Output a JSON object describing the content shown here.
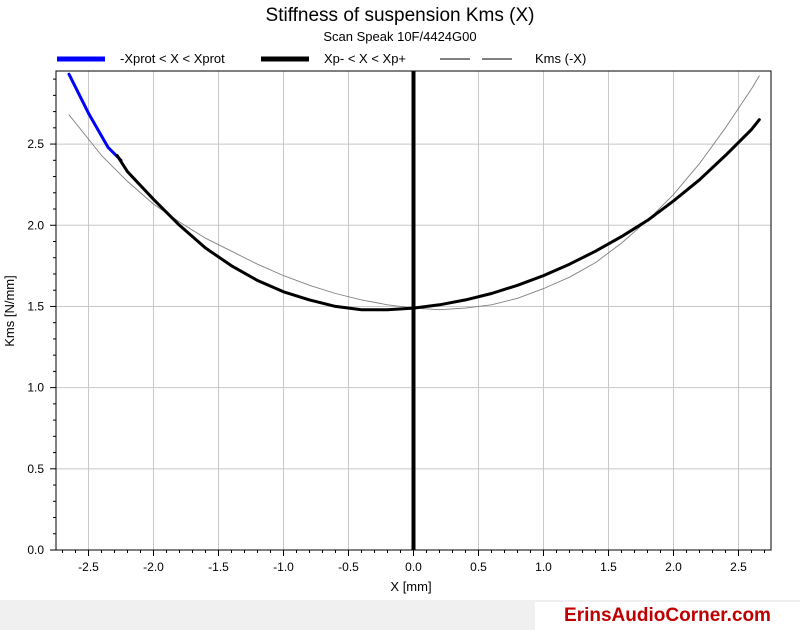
{
  "chart_data": {
    "type": "line",
    "title": "Stiffness of suspension Kms (X)",
    "subtitle": "Scan Speak 10F/4424G00",
    "xlabel": "X [mm]",
    "ylabel": "Kms [N/mm]",
    "xlim": [
      -2.75,
      2.75
    ],
    "ylim": [
      0,
      2.95
    ],
    "xticks": [
      -2.5,
      -2.0,
      -1.5,
      -1.0,
      -0.5,
      0.0,
      0.5,
      1.0,
      1.5,
      2.0,
      2.5
    ],
    "xtick_labels": [
      "-2.5",
      "-2.0",
      "-1.5",
      "-1.0",
      "-0.5",
      "0.0",
      "0.5",
      "1.0",
      "1.5",
      "2.0",
      "2.5"
    ],
    "yticks": [
      0.0,
      0.5,
      1.0,
      1.5,
      2.0,
      2.5
    ],
    "ytick_labels": [
      "0.0",
      "0.5",
      "1.0",
      "1.5",
      "2.0",
      "2.5"
    ],
    "grid": true,
    "legend_position": "top",
    "vertical_line_x": 0.0,
    "series": [
      {
        "name": "-Xprot < X < Xprot",
        "color": "#0000ff",
        "x": [
          -2.65,
          -2.5,
          -2.35,
          -2.25
        ],
        "y": [
          2.93,
          2.69,
          2.48,
          2.4
        ]
      },
      {
        "name": "Xp- < X < Xp+",
        "color": "#000000",
        "x": [
          -2.28,
          -2.2,
          -2.0,
          -1.8,
          -1.6,
          -1.4,
          -1.2,
          -1.0,
          -0.8,
          -0.6,
          -0.4,
          -0.2,
          0.0,
          0.2,
          0.4,
          0.6,
          0.8,
          1.0,
          1.2,
          1.4,
          1.6,
          1.8,
          2.0,
          2.2,
          2.4,
          2.6,
          2.66
        ],
        "y": [
          2.43,
          2.33,
          2.16,
          2.0,
          1.86,
          1.75,
          1.66,
          1.59,
          1.54,
          1.5,
          1.48,
          1.48,
          1.49,
          1.51,
          1.54,
          1.58,
          1.63,
          1.69,
          1.76,
          1.84,
          1.93,
          2.03,
          2.15,
          2.28,
          2.43,
          2.59,
          2.65
        ]
      },
      {
        "name": "Kms (-X)",
        "color": "#808080",
        "x": [
          -2.65,
          -2.4,
          -2.2,
          -2.0,
          -1.8,
          -1.6,
          -1.4,
          -1.2,
          -1.0,
          -0.8,
          -0.6,
          -0.4,
          -0.2,
          0.0,
          0.2,
          0.4,
          0.6,
          0.8,
          1.0,
          1.2,
          1.4,
          1.6,
          1.8,
          2.0,
          2.2,
          2.4,
          2.6,
          2.66
        ],
        "y": [
          2.68,
          2.43,
          2.27,
          2.13,
          2.02,
          1.92,
          1.84,
          1.76,
          1.69,
          1.63,
          1.58,
          1.54,
          1.51,
          1.49,
          1.48,
          1.49,
          1.51,
          1.55,
          1.61,
          1.68,
          1.77,
          1.89,
          2.03,
          2.19,
          2.38,
          2.6,
          2.84,
          2.92
        ]
      }
    ]
  },
  "watermark": "ErinsAudioCorner.com"
}
